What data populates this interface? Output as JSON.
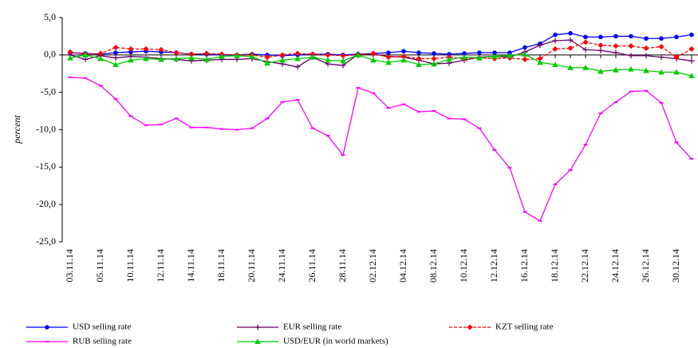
{
  "chart_data": {
    "type": "line",
    "y_label": "percent",
    "categories": [
      "03.11.14",
      null,
      "05.11.14",
      null,
      "10.11.14",
      null,
      "12.11.14",
      null,
      "14.11.14",
      null,
      "18.11.14",
      null,
      "20.11.14",
      null,
      "24.11.14",
      null,
      "26.11.14",
      null,
      "28.11.14",
      null,
      "02.12.14",
      null,
      "04.12.14",
      null,
      "08.12.14",
      null,
      "10.12.14",
      null,
      "12.12.14",
      null,
      "16.12.14",
      null,
      "18.12.14",
      null,
      "22.12.14",
      null,
      "24.12.14",
      null,
      "26.12.14",
      null,
      "30.12.14",
      null
    ],
    "ylim": [
      -25,
      5
    ],
    "yticks": [
      {
        "value": 5,
        "label": "5,0"
      },
      {
        "value": 0,
        "label": "0,0"
      },
      {
        "value": -5,
        "label": "-5,0"
      },
      {
        "value": -10,
        "label": "-10,0"
      },
      {
        "value": -15,
        "label": "-15,0"
      },
      {
        "value": -20,
        "label": "-20,0"
      },
      {
        "value": -25,
        "label": "-25,0"
      }
    ],
    "series": [
      {
        "name": "USD selling rate",
        "color": "#0000ff",
        "marker": "circle",
        "dashed": false,
        "values": [
          0.3,
          0.2,
          0.1,
          0.3,
          0.4,
          0.5,
          0.4,
          0.3,
          0.1,
          0.1,
          0,
          0,
          0.1,
          0,
          -0.1,
          0,
          0.1,
          0.1,
          0,
          0.1,
          0.2,
          0.3,
          0.5,
          0.3,
          0.2,
          0.1,
          0.2,
          0.3,
          0.3,
          0.3,
          1.0,
          1.5,
          2.7,
          2.9,
          2.4,
          2.4,
          2.5,
          2.5,
          2.2,
          2.2,
          2.4,
          2.7
        ]
      },
      {
        "name": "EUR selling rate",
        "color": "#660066",
        "marker": "plus",
        "dashed": false,
        "values": [
          0,
          -0.6,
          -0.1,
          -0.4,
          -0.2,
          -0.3,
          -0.5,
          -0.6,
          -0.8,
          -0.7,
          -0.6,
          -0.6,
          -0.5,
          -0.9,
          -1.2,
          -1.6,
          -0.3,
          -1.2,
          -1.4,
          0.1,
          0.1,
          -0.2,
          -0.3,
          -0.7,
          -1.2,
          -1.1,
          -0.7,
          -0.3,
          -0.2,
          -0.3,
          0.4,
          1.3,
          1.9,
          2.0,
          0.7,
          0.6,
          0.3,
          -0.1,
          -0.1,
          -0.3,
          -0.5,
          -0.8
        ]
      },
      {
        "name": "KZT selling rate",
        "color": "#ff0000",
        "marker": "diamond",
        "dashed": true,
        "values": [
          0.4,
          0.1,
          0.2,
          1.0,
          0.8,
          0.8,
          0.7,
          0.3,
          0.1,
          0.2,
          0.1,
          0,
          0,
          -0.3,
          0,
          0.2,
          0.1,
          0,
          -0.1,
          0,
          0.2,
          -0.3,
          -0.2,
          -0.5,
          -0.5,
          -0.3,
          -0.5,
          -0.4,
          -0.5,
          -0.4,
          -0.6,
          -0.5,
          0.8,
          0.9,
          1.7,
          1.3,
          1.2,
          1.2,
          0.9,
          1.1,
          -0.3,
          0.8
        ]
      },
      {
        "name": "RUB selling rate",
        "color": "#ff00ff",
        "marker": "dash",
        "dashed": false,
        "values": [
          -3.0,
          -3.1,
          -4.1,
          -5.9,
          -8.2,
          -9.4,
          -9.3,
          -8.5,
          -9.7,
          -9.7,
          -9.9,
          -10.0,
          -9.8,
          -8.5,
          -6.3,
          -6.0,
          -9.8,
          -10.8,
          -13.4,
          -4.4,
          -5.1,
          -7.1,
          -6.6,
          -7.6,
          -7.5,
          -8.5,
          -8.6,
          -9.8,
          -12.7,
          -15.1,
          -21.0,
          -22.2,
          -17.3,
          -15.4,
          -12.0,
          -7.8,
          -6.3,
          -4.9,
          -4.8,
          -6.4,
          -11.7,
          -13.9
        ]
      },
      {
        "name": "USD/EUR (in world markets)",
        "color": "#00cc00",
        "marker": "triangle",
        "dashed": false,
        "values": [
          -0.4,
          0,
          -0.5,
          -1.3,
          -0.7,
          -0.5,
          -0.6,
          -0.5,
          -0.4,
          -0.6,
          -0.2,
          -0.1,
          -0.2,
          -1.1,
          -0.7,
          -0.5,
          -0.3,
          -0.7,
          -0.8,
          0,
          -0.7,
          -1.0,
          -0.7,
          -1.3,
          -1.2,
          -0.6,
          -0.3,
          -0.4,
          -0.2,
          -0.1,
          0.1,
          -1.0,
          -1.3,
          -1.7,
          -1.7,
          -2.2,
          -2.0,
          -1.9,
          -2.1,
          -2.3,
          -2.3,
          -2.8
        ]
      }
    ]
  }
}
